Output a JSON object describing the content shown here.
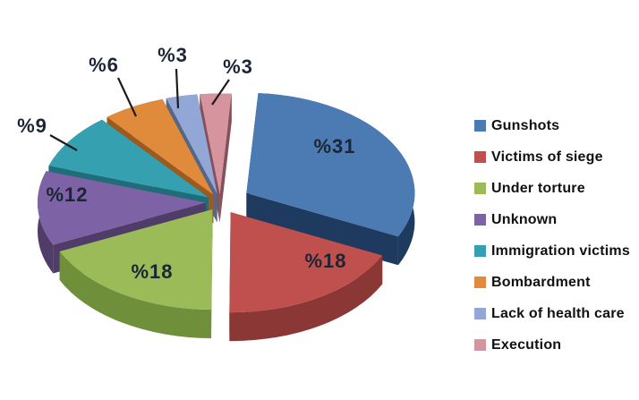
{
  "chart_data": {
    "type": "pie",
    "style": "3d-exploded",
    "background": "#ffffff",
    "legend_position": "right",
    "label_prefix": "%",
    "label_color": "#1c2535",
    "leader_line_color": "#1c1c1c",
    "series": [
      {
        "label": "Gunshots",
        "value": 31,
        "color": "#4b7bb2",
        "dark": "#1e3a5f"
      },
      {
        "label": "Victims of siege",
        "value": 18,
        "color": "#c0504d",
        "dark": "#8b3735"
      },
      {
        "label": "Under torture",
        "value": 18,
        "color": "#9bbb59",
        "dark": "#6f8f3a"
      },
      {
        "label": "Unknown",
        "value": 12,
        "color": "#7d63a5",
        "dark": "#4f3c68"
      },
      {
        "label": "Immigration victims",
        "value": 9,
        "color": "#35a0b0",
        "dark": "#1f6d78"
      },
      {
        "label": "Bombardment",
        "value": 6,
        "color": "#e08b3c",
        "dark": "#9e5a1e"
      },
      {
        "label": "Lack of health care",
        "value": 3,
        "color": "#92a7d6",
        "dark": "#566685"
      },
      {
        "label": "Execution",
        "value": 3,
        "color": "#d6949e",
        "dark": "#84505a"
      }
    ],
    "slice_labels": [
      "%31",
      "%18",
      "%18",
      "%12",
      "%9",
      "%6",
      "%3",
      "%3"
    ]
  }
}
